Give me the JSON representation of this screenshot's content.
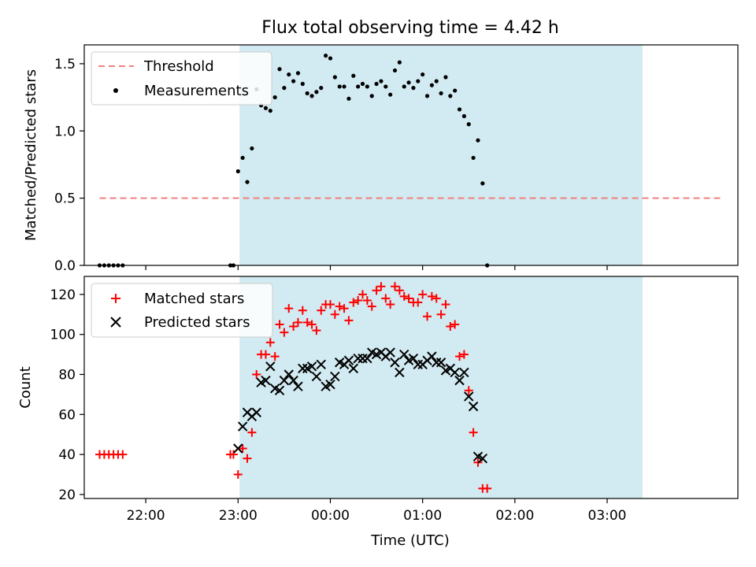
{
  "figure": {
    "title": "Flux total observing time = 4.42 h",
    "xlabel": "Time (UTC)",
    "x_ticks": [
      "22:00",
      "23:00",
      "00:00",
      "01:00",
      "02:00",
      "03:00"
    ],
    "shade_color": "#add8e6",
    "shade_span": [
      "23:01",
      "03:23"
    ]
  },
  "chart_data": [
    {
      "type": "scatter",
      "name": "top-panel",
      "ylabel": "Matched/Predicted stars",
      "ylim": [
        0,
        1.64
      ],
      "xlim": [
        "21:20",
        "04:25"
      ],
      "y_ticks": [
        "0.0",
        "0.5",
        "1.0",
        "1.5"
      ],
      "legend_position": "top-left",
      "threshold": {
        "name": "Threshold",
        "value": 0.5,
        "x_range": [
          "21:30",
          "04:15"
        ],
        "color": "#f08080",
        "style": "dashed"
      },
      "series": [
        {
          "name": "Measurements",
          "color": "#000000",
          "marker": "dot",
          "points": [
            [
              "21:30",
              0
            ],
            [
              "21:33",
              0
            ],
            [
              "21:36",
              0
            ],
            [
              "21:39",
              0
            ],
            [
              "21:42",
              0
            ],
            [
              "21:45",
              0
            ],
            [
              "22:55",
              0
            ],
            [
              "22:57",
              0
            ],
            [
              "23:00",
              0.7
            ],
            [
              "23:03",
              0.8
            ],
            [
              "23:06",
              0.62
            ],
            [
              "23:09",
              0.87
            ],
            [
              "23:12",
              1.31
            ],
            [
              "23:15",
              1.19
            ],
            [
              "23:18",
              1.17
            ],
            [
              "23:21",
              1.15
            ],
            [
              "23:24",
              1.25
            ],
            [
              "23:27",
              1.46
            ],
            [
              "23:30",
              1.32
            ],
            [
              "23:33",
              1.42
            ],
            [
              "23:36",
              1.37
            ],
            [
              "23:39",
              1.43
            ],
            [
              "23:42",
              1.35
            ],
            [
              "23:45",
              1.28
            ],
            [
              "23:48",
              1.26
            ],
            [
              "23:51",
              1.29
            ],
            [
              "23:54",
              1.32
            ],
            [
              "23:57",
              1.56
            ],
            [
              "00:00",
              1.54
            ],
            [
              "00:03",
              1.4
            ],
            [
              "00:06",
              1.33
            ],
            [
              "00:09",
              1.33
            ],
            [
              "00:12",
              1.24
            ],
            [
              "00:15",
              1.41
            ],
            [
              "00:18",
              1.33
            ],
            [
              "00:21",
              1.35
            ],
            [
              "00:24",
              1.33
            ],
            [
              "00:27",
              1.26
            ],
            [
              "00:30",
              1.35
            ],
            [
              "00:33",
              1.37
            ],
            [
              "00:36",
              1.33
            ],
            [
              "00:39",
              1.27
            ],
            [
              "00:42",
              1.45
            ],
            [
              "00:45",
              1.51
            ],
            [
              "00:48",
              1.33
            ],
            [
              "00:51",
              1.36
            ],
            [
              "00:54",
              1.32
            ],
            [
              "00:57",
              1.37
            ],
            [
              "01:00",
              1.42
            ],
            [
              "01:03",
              1.26
            ],
            [
              "01:06",
              1.34
            ],
            [
              "01:09",
              1.37
            ],
            [
              "01:12",
              1.28
            ],
            [
              "01:15",
              1.4
            ],
            [
              "01:18",
              1.26
            ],
            [
              "01:21",
              1.3
            ],
            [
              "01:24",
              1.16
            ],
            [
              "01:27",
              1.11
            ],
            [
              "01:30",
              1.05
            ],
            [
              "01:33",
              0.8
            ],
            [
              "01:36",
              0.93
            ],
            [
              "01:39",
              0.61
            ],
            [
              "01:42",
              0
            ]
          ]
        }
      ]
    },
    {
      "type": "scatter",
      "name": "bottom-panel",
      "ylabel": "Count",
      "ylim": [
        18,
        129
      ],
      "xlim": [
        "21:20",
        "04:25"
      ],
      "y_ticks": [
        "20",
        "40",
        "60",
        "80",
        "100",
        "120"
      ],
      "legend_position": "top-left",
      "series": [
        {
          "name": "Matched stars",
          "color": "#ff0000",
          "marker": "plus",
          "points": [
            [
              "21:30",
              40
            ],
            [
              "21:33",
              40
            ],
            [
              "21:36",
              40
            ],
            [
              "21:39",
              40
            ],
            [
              "21:42",
              40
            ],
            [
              "21:45",
              40
            ],
            [
              "22:55",
              40
            ],
            [
              "22:57",
              40
            ],
            [
              "23:00",
              30
            ],
            [
              "23:03",
              43
            ],
            [
              "23:06",
              38
            ],
            [
              "23:09",
              51
            ],
            [
              "23:12",
              80
            ],
            [
              "23:15",
              90
            ],
            [
              "23:18",
              90
            ],
            [
              "23:21",
              96
            ],
            [
              "23:24",
              89
            ],
            [
              "23:27",
              105
            ],
            [
              "23:30",
              101
            ],
            [
              "23:33",
              113
            ],
            [
              "23:36",
              104
            ],
            [
              "23:39",
              106
            ],
            [
              "23:42",
              112
            ],
            [
              "23:45",
              106
            ],
            [
              "23:48",
              105
            ],
            [
              "23:51",
              102
            ],
            [
              "23:54",
              112
            ],
            [
              "23:57",
              115
            ],
            [
              "00:00",
              115
            ],
            [
              "00:03",
              110
            ],
            [
              "00:06",
              114
            ],
            [
              "00:09",
              113
            ],
            [
              "00:12",
              107
            ],
            [
              "00:15",
              116
            ],
            [
              "00:18",
              117
            ],
            [
              "00:21",
              120
            ],
            [
              "00:24",
              117
            ],
            [
              "00:27",
              114
            ],
            [
              "00:30",
              122
            ],
            [
              "00:33",
              124
            ],
            [
              "00:36",
              118
            ],
            [
              "00:39",
              115
            ],
            [
              "00:42",
              124
            ],
            [
              "00:45",
              122
            ],
            [
              "00:48",
              119
            ],
            [
              "00:51",
              118
            ],
            [
              "00:54",
              116
            ],
            [
              "00:57",
              116
            ],
            [
              "01:00",
              120
            ],
            [
              "01:03",
              109
            ],
            [
              "01:06",
              119
            ],
            [
              "01:09",
              118
            ],
            [
              "01:12",
              110
            ],
            [
              "01:15",
              115
            ],
            [
              "01:18",
              104
            ],
            [
              "01:21",
              105
            ],
            [
              "01:24",
              89
            ],
            [
              "01:27",
              90
            ],
            [
              "01:30",
              72
            ],
            [
              "01:33",
              51
            ],
            [
              "01:36",
              36
            ],
            [
              "01:39",
              23
            ],
            [
              "01:42",
              23
            ]
          ]
        },
        {
          "name": "Predicted stars",
          "color": "#000000",
          "marker": "x",
          "points": [
            [
              "23:00",
              43
            ],
            [
              "23:03",
              54
            ],
            [
              "23:06",
              61
            ],
            [
              "23:09",
              59
            ],
            [
              "23:12",
              61
            ],
            [
              "23:15",
              76
            ],
            [
              "23:18",
              77
            ],
            [
              "23:21",
              84
            ],
            [
              "23:24",
              73
            ],
            [
              "23:27",
              72
            ],
            [
              "23:30",
              77
            ],
            [
              "23:33",
              80
            ],
            [
              "23:36",
              77
            ],
            [
              "23:39",
              74
            ],
            [
              "23:42",
              83
            ],
            [
              "23:45",
              83
            ],
            [
              "23:48",
              84
            ],
            [
              "23:51",
              79
            ],
            [
              "23:54",
              85
            ],
            [
              "23:57",
              74
            ],
            [
              "00:00",
              75
            ],
            [
              "00:03",
              79
            ],
            [
              "00:06",
              86
            ],
            [
              "00:09",
              85
            ],
            [
              "00:12",
              87
            ],
            [
              "00:15",
              83
            ],
            [
              "00:18",
              88
            ],
            [
              "00:21",
              88
            ],
            [
              "00:24",
              88
            ],
            [
              "00:27",
              91
            ],
            [
              "00:30",
              90
            ],
            [
              "00:33",
              91
            ],
            [
              "00:36",
              89
            ],
            [
              "00:39",
              91
            ],
            [
              "00:42",
              86
            ],
            [
              "00:45",
              81
            ],
            [
              "00:48",
              90
            ],
            [
              "00:51",
              87
            ],
            [
              "00:54",
              88
            ],
            [
              "00:57",
              85
            ],
            [
              "01:00",
              85
            ],
            [
              "01:03",
              87
            ],
            [
              "01:06",
              89
            ],
            [
              "01:09",
              86
            ],
            [
              "01:12",
              86
            ],
            [
              "01:15",
              82
            ],
            [
              "01:18",
              83
            ],
            [
              "01:21",
              81
            ],
            [
              "01:24",
              77
            ],
            [
              "01:27",
              81
            ],
            [
              "01:30",
              69
            ],
            [
              "01:33",
              64
            ],
            [
              "01:36",
              39
            ],
            [
              "01:39",
              38
            ]
          ]
        }
      ]
    }
  ]
}
